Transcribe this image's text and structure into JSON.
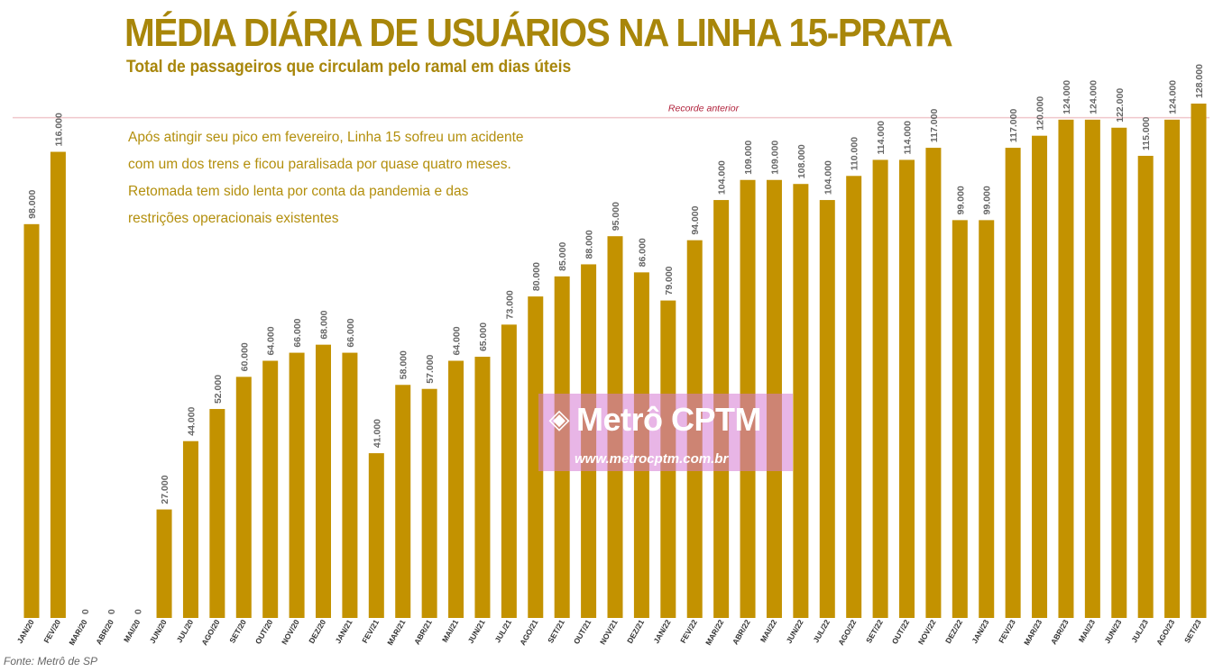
{
  "title": "MÉDIA DIÁRIA DE USUÁRIOS NA LINHA 15-PRATA",
  "subtitle": "Total de passageiros que circulam pelo ramal em dias úteis",
  "annotation": {
    "line1": "Após atingir seu pico em fevereiro, Linha 15 sofreu um acidente",
    "line2": "com um dos trens e ficou paralisada por quase quatro meses.",
    "line3": "Retomada tem sido lenta por conta da pandemia e das",
    "line4": "restrições operacionais existentes"
  },
  "source": "Fonte: Metrô de SP",
  "watermark": {
    "name": "Metrô CPTM",
    "url": "www.metrocptm.com.br",
    "icon": "metro-cptm-logo-icon"
  },
  "colors": {
    "bar": "#c39200",
    "title": "#a8860a",
    "reference_line": "#f0c8cc",
    "reference_label": "#b0203a",
    "value_label": "#666666"
  },
  "chart_data": {
    "type": "bar",
    "categories": [
      "JAN/20",
      "FEV/20",
      "MAR/20",
      "ABR/20",
      "MAI/20",
      "JUN/20",
      "JUL/20",
      "AGO/20",
      "SET/20",
      "OUT/20",
      "NOV/20",
      "DEZ/20",
      "JAN/21",
      "FEV/21",
      "MAR/21",
      "ABR/21",
      "MAI/21",
      "JUN/21",
      "JUL/21",
      "AGO/21",
      "SET/21",
      "OUT/21",
      "NOV/21",
      "DEZ/21",
      "JAN/22",
      "FEV/22",
      "MAR/22",
      "ABR/22",
      "MAI/22",
      "JUN/22",
      "JUL/22",
      "AGO/22",
      "SET/22",
      "OUT/22",
      "NOV/22",
      "DEZ/22",
      "JAN/23",
      "FEV/23",
      "MAR/23",
      "ABR/23",
      "MAI/23",
      "JUN/23",
      "JUL/23",
      "AGO/23",
      "SET/23"
    ],
    "values": [
      98000,
      116000,
      0,
      0,
      0,
      27000,
      44000,
      52000,
      60000,
      64000,
      66000,
      68000,
      66000,
      41000,
      58000,
      57000,
      64000,
      65000,
      73000,
      80000,
      85000,
      88000,
      95000,
      86000,
      79000,
      94000,
      104000,
      109000,
      109000,
      108000,
      104000,
      110000,
      114000,
      114000,
      117000,
      99000,
      99000,
      117000,
      120000,
      124000,
      124000,
      122000,
      115000,
      124000,
      128000
    ],
    "value_labels": [
      "98.000",
      "116.000",
      "0",
      "0",
      "0",
      "27.000",
      "44.000",
      "52.000",
      "60.000",
      "64.000",
      "66.000",
      "68.000",
      "66.000",
      "41.000",
      "58.000",
      "57.000",
      "64.000",
      "65.000",
      "73.000",
      "80.000",
      "85.000",
      "88.000",
      "95.000",
      "86.000",
      "79.000",
      "94.000",
      "104.000",
      "109.000",
      "109.000",
      "108.000",
      "104.000",
      "110.000",
      "114.000",
      "114.000",
      "117.000",
      "99.000",
      "99.000",
      "117.000",
      "120.000",
      "124.000",
      "124.000",
      "122.000",
      "115.000",
      "124.000",
      "128.000"
    ],
    "reference_line": {
      "label": "Recorde anterior",
      "value": 124500
    },
    "ylim": [
      0,
      128000
    ],
    "xlabel": "",
    "ylabel": "",
    "grid": false,
    "legend": "none"
  }
}
